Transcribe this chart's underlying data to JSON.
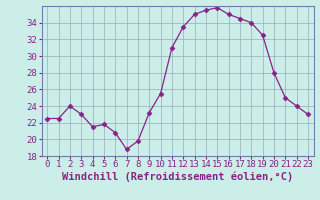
{
  "x": [
    0,
    1,
    2,
    3,
    4,
    5,
    6,
    7,
    8,
    9,
    10,
    11,
    12,
    13,
    14,
    15,
    16,
    17,
    18,
    19,
    20,
    21,
    22,
    23
  ],
  "y": [
    22.5,
    22.5,
    24.0,
    23.0,
    21.5,
    21.8,
    20.8,
    18.8,
    19.8,
    23.2,
    25.5,
    31.0,
    33.5,
    35.0,
    35.5,
    35.8,
    35.0,
    34.5,
    34.0,
    32.5,
    28.0,
    25.0,
    24.0,
    23.0
  ],
  "line_color": "#882288",
  "marker": "D",
  "marker_size": 2.5,
  "bg_color": "#cceee8",
  "grid_color": "#99aabb",
  "xlabel": "Windchill (Refroidissement éolien,°C)",
  "xlabel_fontsize": 7.5,
  "tick_fontsize": 6.5,
  "ylim": [
    18,
    36
  ],
  "yticks": [
    18,
    20,
    22,
    24,
    26,
    28,
    30,
    32,
    34
  ],
  "xlim": [
    -0.5,
    23.5
  ],
  "xticks": [
    0,
    1,
    2,
    3,
    4,
    5,
    6,
    7,
    8,
    9,
    10,
    11,
    12,
    13,
    14,
    15,
    16,
    17,
    18,
    19,
    20,
    21,
    22,
    23
  ],
  "spine_color": "#7777aa"
}
